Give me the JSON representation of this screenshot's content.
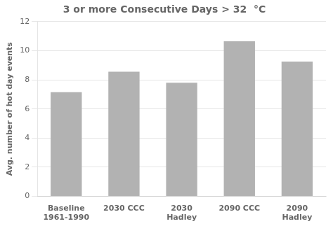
{
  "chart_data": {
    "type": "bar",
    "title": "3 or more Consecutive Days > 32  °C",
    "categories": [
      "Baseline\n1961-1990",
      "2030 CCC",
      "2030\nHadley",
      "2090 CCC",
      "2090\nHadley"
    ],
    "values": [
      7.15,
      8.55,
      7.8,
      10.65,
      9.25
    ],
    "color": "#b2b2b2",
    "ylabel": "Avg. number of hot day events",
    "ylim": [
      0,
      12
    ],
    "yticks": [
      0,
      2,
      4,
      6,
      8,
      10,
      12
    ],
    "grid": true
  }
}
